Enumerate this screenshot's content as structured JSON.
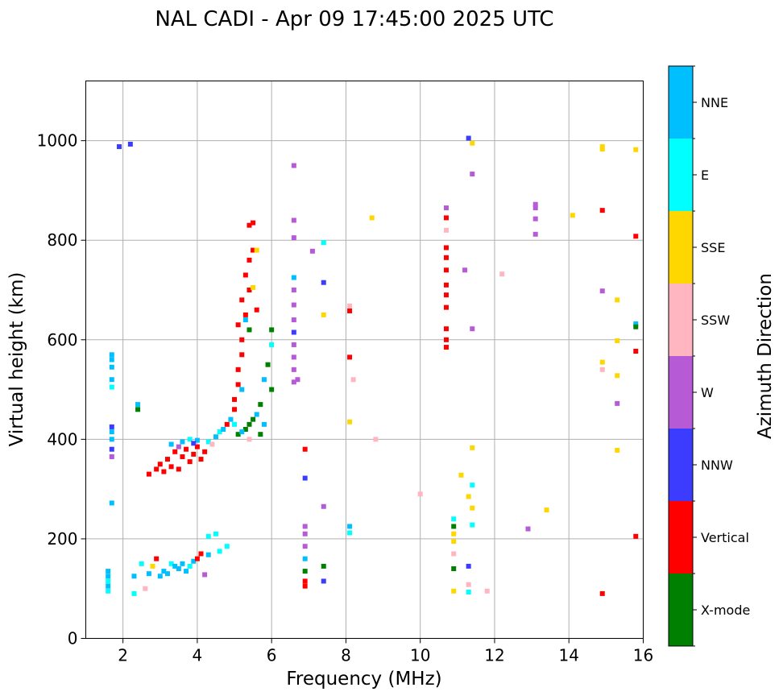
{
  "chart_data": {
    "type": "scatter",
    "title": "NAL CADI - Apr 09 17:45:00 2025 UTC",
    "xlabel": "Frequency (MHz)",
    "ylabel": "Virtual height (km)",
    "xlim": [
      1,
      16
    ],
    "ylim": [
      0,
      1120
    ],
    "xticks": [
      "2",
      "4",
      "6",
      "8",
      "10",
      "12",
      "14",
      "16"
    ],
    "yticks": [
      "0",
      "200",
      "400",
      "600",
      "800",
      "1000"
    ],
    "grid": true,
    "colorbar": {
      "label": "Azimuth Direction",
      "categories": [
        {
          "name": "X-mode",
          "color": "#008000"
        },
        {
          "name": "Vertical",
          "color": "#ff0000"
        },
        {
          "name": "NNW",
          "color": "#3c3cff"
        },
        {
          "name": "W",
          "color": "#b65ad6"
        },
        {
          "name": "SSW",
          "color": "#ffb6c1"
        },
        {
          "name": "SSE",
          "color": "#ffd700"
        },
        {
          "name": "E",
          "color": "#00ffff"
        },
        {
          "name": "NNE",
          "color": "#00bfff"
        }
      ]
    },
    "points": [
      {
        "x": 1.6,
        "y": 95,
        "c": "E"
      },
      {
        "x": 1.6,
        "y": 105,
        "c": "NNE"
      },
      {
        "x": 1.6,
        "y": 115,
        "c": "E"
      },
      {
        "x": 1.6,
        "y": 125,
        "c": "NNE"
      },
      {
        "x": 1.6,
        "y": 135,
        "c": "NNE"
      },
      {
        "x": 1.7,
        "y": 272,
        "c": "NNE"
      },
      {
        "x": 1.7,
        "y": 365,
        "c": "W"
      },
      {
        "x": 1.7,
        "y": 380,
        "c": "NNW"
      },
      {
        "x": 1.7,
        "y": 400,
        "c": "NNE"
      },
      {
        "x": 1.7,
        "y": 415,
        "c": "NNE"
      },
      {
        "x": 1.7,
        "y": 425,
        "c": "NNW"
      },
      {
        "x": 1.7,
        "y": 505,
        "c": "E"
      },
      {
        "x": 1.7,
        "y": 520,
        "c": "NNE"
      },
      {
        "x": 1.7,
        "y": 545,
        "c": "NNE"
      },
      {
        "x": 1.7,
        "y": 560,
        "c": "NNE"
      },
      {
        "x": 1.7,
        "y": 570,
        "c": "NNE"
      },
      {
        "x": 1.9,
        "y": 988,
        "c": "NNW"
      },
      {
        "x": 2.2,
        "y": 993,
        "c": "NNW"
      },
      {
        "x": 2.4,
        "y": 460,
        "c": "X-mode"
      },
      {
        "x": 2.4,
        "y": 470,
        "c": "NNE"
      },
      {
        "x": 2.3,
        "y": 125,
        "c": "NNE"
      },
      {
        "x": 2.3,
        "y": 90,
        "c": "E"
      },
      {
        "x": 2.5,
        "y": 150,
        "c": "E"
      },
      {
        "x": 2.7,
        "y": 130,
        "c": "NNE"
      },
      {
        "x": 2.8,
        "y": 145,
        "c": "SSE"
      },
      {
        "x": 2.9,
        "y": 160,
        "c": "Vertical"
      },
      {
        "x": 3.0,
        "y": 125,
        "c": "NNE"
      },
      {
        "x": 3.1,
        "y": 135,
        "c": "NNE"
      },
      {
        "x": 3.2,
        "y": 130,
        "c": "NNE"
      },
      {
        "x": 3.3,
        "y": 150,
        "c": "E"
      },
      {
        "x": 3.4,
        "y": 145,
        "c": "NNE"
      },
      {
        "x": 3.5,
        "y": 140,
        "c": "NNE"
      },
      {
        "x": 3.6,
        "y": 150,
        "c": "NNE"
      },
      {
        "x": 3.7,
        "y": 135,
        "c": "NNE"
      },
      {
        "x": 3.8,
        "y": 145,
        "c": "E"
      },
      {
        "x": 3.9,
        "y": 155,
        "c": "NNE"
      },
      {
        "x": 4.0,
        "y": 160,
        "c": "Vertical"
      },
      {
        "x": 4.1,
        "y": 170,
        "c": "Vertical"
      },
      {
        "x": 4.2,
        "y": 128,
        "c": "W"
      },
      {
        "x": 4.3,
        "y": 168,
        "c": "NNE"
      },
      {
        "x": 4.3,
        "y": 205,
        "c": "E"
      },
      {
        "x": 4.5,
        "y": 210,
        "c": "E"
      },
      {
        "x": 4.6,
        "y": 175,
        "c": "E"
      },
      {
        "x": 4.8,
        "y": 185,
        "c": "E"
      },
      {
        "x": 2.6,
        "y": 100,
        "c": "SSW"
      },
      {
        "x": 2.7,
        "y": 330,
        "c": "Vertical"
      },
      {
        "x": 2.9,
        "y": 340,
        "c": "Vertical"
      },
      {
        "x": 3.0,
        "y": 350,
        "c": "Vertical"
      },
      {
        "x": 3.1,
        "y": 335,
        "c": "Vertical"
      },
      {
        "x": 3.2,
        "y": 360,
        "c": "Vertical"
      },
      {
        "x": 3.3,
        "y": 345,
        "c": "Vertical"
      },
      {
        "x": 3.4,
        "y": 375,
        "c": "Vertical"
      },
      {
        "x": 3.5,
        "y": 340,
        "c": "Vertical"
      },
      {
        "x": 3.6,
        "y": 365,
        "c": "Vertical"
      },
      {
        "x": 3.7,
        "y": 380,
        "c": "Vertical"
      },
      {
        "x": 3.8,
        "y": 355,
        "c": "Vertical"
      },
      {
        "x": 3.9,
        "y": 370,
        "c": "Vertical"
      },
      {
        "x": 4.0,
        "y": 385,
        "c": "Vertical"
      },
      {
        "x": 4.1,
        "y": 360,
        "c": "Vertical"
      },
      {
        "x": 4.2,
        "y": 375,
        "c": "Vertical"
      },
      {
        "x": 3.3,
        "y": 390,
        "c": "NNE"
      },
      {
        "x": 3.6,
        "y": 395,
        "c": "NNE"
      },
      {
        "x": 3.8,
        "y": 400,
        "c": "E"
      },
      {
        "x": 4.0,
        "y": 398,
        "c": "NNE"
      },
      {
        "x": 4.3,
        "y": 395,
        "c": "E"
      },
      {
        "x": 3.5,
        "y": 385,
        "c": "W"
      },
      {
        "x": 3.9,
        "y": 392,
        "c": "NNW"
      },
      {
        "x": 4.4,
        "y": 390,
        "c": "SSW"
      },
      {
        "x": 4.5,
        "y": 405,
        "c": "NNE"
      },
      {
        "x": 4.6,
        "y": 415,
        "c": "E"
      },
      {
        "x": 4.7,
        "y": 420,
        "c": "NNE"
      },
      {
        "x": 4.8,
        "y": 430,
        "c": "Vertical"
      },
      {
        "x": 4.9,
        "y": 440,
        "c": "NNE"
      },
      {
        "x": 5.0,
        "y": 460,
        "c": "Vertical"
      },
      {
        "x": 5.0,
        "y": 480,
        "c": "Vertical"
      },
      {
        "x": 5.1,
        "y": 510,
        "c": "Vertical"
      },
      {
        "x": 5.1,
        "y": 540,
        "c": "Vertical"
      },
      {
        "x": 5.2,
        "y": 570,
        "c": "Vertical"
      },
      {
        "x": 5.2,
        "y": 600,
        "c": "Vertical"
      },
      {
        "x": 5.1,
        "y": 630,
        "c": "Vertical"
      },
      {
        "x": 5.3,
        "y": 650,
        "c": "Vertical"
      },
      {
        "x": 5.2,
        "y": 680,
        "c": "Vertical"
      },
      {
        "x": 5.4,
        "y": 700,
        "c": "Vertical"
      },
      {
        "x": 5.3,
        "y": 730,
        "c": "Vertical"
      },
      {
        "x": 5.4,
        "y": 760,
        "c": "Vertical"
      },
      {
        "x": 5.5,
        "y": 780,
        "c": "Vertical"
      },
      {
        "x": 5.4,
        "y": 830,
        "c": "Vertical"
      },
      {
        "x": 5.5,
        "y": 835,
        "c": "Vertical"
      },
      {
        "x": 5.6,
        "y": 780,
        "c": "SSE"
      },
      {
        "x": 5.5,
        "y": 705,
        "c": "SSE"
      },
      {
        "x": 5.6,
        "y": 660,
        "c": "Vertical"
      },
      {
        "x": 5.4,
        "y": 620,
        "c": "X-mode"
      },
      {
        "x": 5.3,
        "y": 640,
        "c": "NNE"
      },
      {
        "x": 5.2,
        "y": 500,
        "c": "NNE"
      },
      {
        "x": 5.3,
        "y": 420,
        "c": "X-mode"
      },
      {
        "x": 5.4,
        "y": 430,
        "c": "X-mode"
      },
      {
        "x": 5.5,
        "y": 440,
        "c": "X-mode"
      },
      {
        "x": 5.6,
        "y": 450,
        "c": "NNE"
      },
      {
        "x": 5.7,
        "y": 470,
        "c": "X-mode"
      },
      {
        "x": 5.8,
        "y": 520,
        "c": "NNE"
      },
      {
        "x": 5.9,
        "y": 550,
        "c": "X-mode"
      },
      {
        "x": 6.0,
        "y": 500,
        "c": "X-mode"
      },
      {
        "x": 6.0,
        "y": 620,
        "c": "X-mode"
      },
      {
        "x": 6.0,
        "y": 590,
        "c": "E"
      },
      {
        "x": 5.1,
        "y": 410,
        "c": "X-mode"
      },
      {
        "x": 5.4,
        "y": 400,
        "c": "SSW"
      },
      {
        "x": 5.7,
        "y": 410,
        "c": "X-mode"
      },
      {
        "x": 5.2,
        "y": 415,
        "c": "NNE"
      },
      {
        "x": 5.0,
        "y": 430,
        "c": "E"
      },
      {
        "x": 5.8,
        "y": 430,
        "c": "NNE"
      },
      {
        "x": 6.6,
        "y": 950,
        "c": "W"
      },
      {
        "x": 6.6,
        "y": 840,
        "c": "W"
      },
      {
        "x": 6.6,
        "y": 805,
        "c": "W"
      },
      {
        "x": 6.6,
        "y": 725,
        "c": "NNE"
      },
      {
        "x": 6.6,
        "y": 700,
        "c": "W"
      },
      {
        "x": 6.6,
        "y": 670,
        "c": "W"
      },
      {
        "x": 6.6,
        "y": 640,
        "c": "W"
      },
      {
        "x": 6.6,
        "y": 615,
        "c": "NNW"
      },
      {
        "x": 6.6,
        "y": 590,
        "c": "W"
      },
      {
        "x": 6.6,
        "y": 565,
        "c": "W"
      },
      {
        "x": 6.6,
        "y": 540,
        "c": "W"
      },
      {
        "x": 6.6,
        "y": 515,
        "c": "W"
      },
      {
        "x": 6.7,
        "y": 520,
        "c": "W"
      },
      {
        "x": 6.9,
        "y": 380,
        "c": "Vertical"
      },
      {
        "x": 6.9,
        "y": 322,
        "c": "NNW"
      },
      {
        "x": 6.9,
        "y": 225,
        "c": "W"
      },
      {
        "x": 6.9,
        "y": 210,
        "c": "W"
      },
      {
        "x": 6.9,
        "y": 185,
        "c": "W"
      },
      {
        "x": 6.9,
        "y": 160,
        "c": "NNE"
      },
      {
        "x": 6.9,
        "y": 135,
        "c": "X-mode"
      },
      {
        "x": 6.9,
        "y": 115,
        "c": "Vertical"
      },
      {
        "x": 6.9,
        "y": 105,
        "c": "Vertical"
      },
      {
        "x": 7.1,
        "y": 778,
        "c": "W"
      },
      {
        "x": 7.4,
        "y": 795,
        "c": "E"
      },
      {
        "x": 7.4,
        "y": 715,
        "c": "NNW"
      },
      {
        "x": 7.4,
        "y": 650,
        "c": "SSE"
      },
      {
        "x": 7.4,
        "y": 265,
        "c": "W"
      },
      {
        "x": 7.4,
        "y": 145,
        "c": "X-mode"
      },
      {
        "x": 7.4,
        "y": 115,
        "c": "NNW"
      },
      {
        "x": 8.1,
        "y": 668,
        "c": "SSW"
      },
      {
        "x": 8.1,
        "y": 658,
        "c": "Vertical"
      },
      {
        "x": 8.1,
        "y": 565,
        "c": "Vertical"
      },
      {
        "x": 8.1,
        "y": 435,
        "c": "SSE"
      },
      {
        "x": 8.1,
        "y": 225,
        "c": "NNE"
      },
      {
        "x": 8.1,
        "y": 212,
        "c": "E"
      },
      {
        "x": 8.2,
        "y": 520,
        "c": "SSW"
      },
      {
        "x": 8.7,
        "y": 845,
        "c": "SSE"
      },
      {
        "x": 8.8,
        "y": 400,
        "c": "SSW"
      },
      {
        "x": 10.0,
        "y": 290,
        "c": "SSW"
      },
      {
        "x": 10.7,
        "y": 865,
        "c": "W"
      },
      {
        "x": 10.7,
        "y": 845,
        "c": "Vertical"
      },
      {
        "x": 10.7,
        "y": 820,
        "c": "SSW"
      },
      {
        "x": 10.7,
        "y": 785,
        "c": "Vertical"
      },
      {
        "x": 10.7,
        "y": 765,
        "c": "Vertical"
      },
      {
        "x": 10.7,
        "y": 740,
        "c": "Vertical"
      },
      {
        "x": 10.7,
        "y": 710,
        "c": "Vertical"
      },
      {
        "x": 10.7,
        "y": 690,
        "c": "Vertical"
      },
      {
        "x": 10.7,
        "y": 665,
        "c": "Vertical"
      },
      {
        "x": 10.7,
        "y": 622,
        "c": "Vertical"
      },
      {
        "x": 10.7,
        "y": 600,
        "c": "Vertical"
      },
      {
        "x": 10.7,
        "y": 585,
        "c": "Vertical"
      },
      {
        "x": 10.9,
        "y": 240,
        "c": "E"
      },
      {
        "x": 10.9,
        "y": 225,
        "c": "X-mode"
      },
      {
        "x": 10.9,
        "y": 210,
        "c": "SSE"
      },
      {
        "x": 10.9,
        "y": 195,
        "c": "SSE"
      },
      {
        "x": 10.9,
        "y": 170,
        "c": "SSW"
      },
      {
        "x": 10.9,
        "y": 140,
        "c": "X-mode"
      },
      {
        "x": 10.9,
        "y": 95,
        "c": "SSE"
      },
      {
        "x": 11.1,
        "y": 328,
        "c": "SSE"
      },
      {
        "x": 11.2,
        "y": 740,
        "c": "W"
      },
      {
        "x": 11.3,
        "y": 1005,
        "c": "NNW"
      },
      {
        "x": 11.3,
        "y": 285,
        "c": "SSE"
      },
      {
        "x": 11.3,
        "y": 145,
        "c": "NNW"
      },
      {
        "x": 11.3,
        "y": 108,
        "c": "SSW"
      },
      {
        "x": 11.3,
        "y": 93,
        "c": "E"
      },
      {
        "x": 11.4,
        "y": 995,
        "c": "SSE"
      },
      {
        "x": 11.4,
        "y": 933,
        "c": "W"
      },
      {
        "x": 11.4,
        "y": 622,
        "c": "W"
      },
      {
        "x": 11.4,
        "y": 383,
        "c": "SSE"
      },
      {
        "x": 11.4,
        "y": 308,
        "c": "E"
      },
      {
        "x": 11.4,
        "y": 262,
        "c": "SSE"
      },
      {
        "x": 11.4,
        "y": 228,
        "c": "E"
      },
      {
        "x": 11.8,
        "y": 95,
        "c": "SSW"
      },
      {
        "x": 12.2,
        "y": 732,
        "c": "SSW"
      },
      {
        "x": 12.9,
        "y": 220,
        "c": "W"
      },
      {
        "x": 13.1,
        "y": 872,
        "c": "W"
      },
      {
        "x": 13.1,
        "y": 865,
        "c": "W"
      },
      {
        "x": 13.1,
        "y": 843,
        "c": "W"
      },
      {
        "x": 13.1,
        "y": 812,
        "c": "W"
      },
      {
        "x": 13.4,
        "y": 258,
        "c": "SSE"
      },
      {
        "x": 14.1,
        "y": 850,
        "c": "SSE"
      },
      {
        "x": 14.9,
        "y": 988,
        "c": "SSE"
      },
      {
        "x": 14.9,
        "y": 983,
        "c": "SSE"
      },
      {
        "x": 14.9,
        "y": 860,
        "c": "Vertical"
      },
      {
        "x": 14.9,
        "y": 698,
        "c": "W"
      },
      {
        "x": 14.9,
        "y": 555,
        "c": "SSE"
      },
      {
        "x": 14.9,
        "y": 540,
        "c": "SSW"
      },
      {
        "x": 14.9,
        "y": 90,
        "c": "Vertical"
      },
      {
        "x": 15.3,
        "y": 680,
        "c": "SSE"
      },
      {
        "x": 15.3,
        "y": 598,
        "c": "SSE"
      },
      {
        "x": 15.3,
        "y": 528,
        "c": "SSE"
      },
      {
        "x": 15.3,
        "y": 472,
        "c": "W"
      },
      {
        "x": 15.3,
        "y": 378,
        "c": "SSE"
      },
      {
        "x": 15.8,
        "y": 982,
        "c": "SSE"
      },
      {
        "x": 15.8,
        "y": 808,
        "c": "Vertical"
      },
      {
        "x": 15.8,
        "y": 632,
        "c": "NNE"
      },
      {
        "x": 15.8,
        "y": 626,
        "c": "X-mode"
      },
      {
        "x": 15.8,
        "y": 577,
        "c": "Vertical"
      },
      {
        "x": 15.8,
        "y": 205,
        "c": "Vertical"
      }
    ]
  }
}
